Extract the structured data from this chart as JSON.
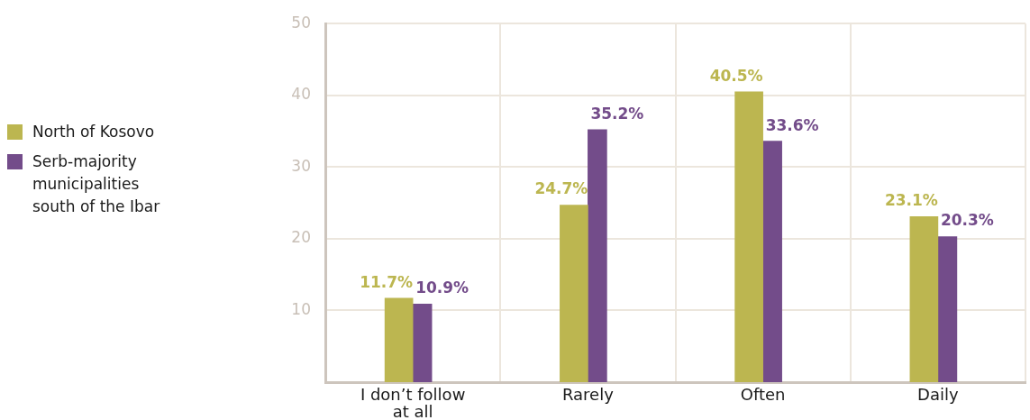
{
  "chart_data": {
    "type": "bar",
    "categories": [
      "I don’t follow at all",
      "Rarely",
      "Often",
      "Daily"
    ],
    "series": [
      {
        "name": "North of Kosovo",
        "color": "#bcb650",
        "values": [
          11.7,
          24.7,
          40.5,
          23.1
        ],
        "value_labels": [
          "11.7%",
          "24.7%",
          "40.5%",
          "23.1%"
        ]
      },
      {
        "name": "Serb-majority municipalities south of the Ibar",
        "color": "#734c8a",
        "values": [
          10.9,
          35.2,
          33.6,
          20.3
        ],
        "value_labels": [
          "10.9%",
          "35.2%",
          "33.6%",
          "20.3%"
        ]
      }
    ],
    "ylim": [
      0,
      50
    ],
    "yticks": [
      10,
      20,
      30,
      40,
      50
    ],
    "grid": true,
    "legend": "left"
  }
}
